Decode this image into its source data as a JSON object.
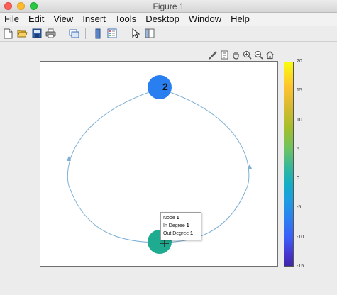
{
  "window": {
    "title": "Figure 1"
  },
  "menu": [
    "File",
    "Edit",
    "View",
    "Insert",
    "Tools",
    "Desktop",
    "Window",
    "Help"
  ],
  "toolbar": {
    "icons": [
      "new-file-icon",
      "open-folder-icon",
      "save-icon",
      "print-icon",
      "link-plot-icon",
      "insert-colorbar-icon",
      "insert-legend-icon",
      "edit-plot-icon",
      "property-inspector-icon"
    ]
  },
  "axes_toolbar": {
    "icons": [
      "brush-icon",
      "datatip-icon",
      "pan-icon",
      "zoom-in-icon",
      "zoom-out-icon",
      "home-icon"
    ]
  },
  "graph": {
    "nodes": [
      {
        "id": "1",
        "label": "",
        "color": "#1fab8f"
      },
      {
        "id": "2",
        "label": "2",
        "color": "#2a7ff0"
      }
    ],
    "edges": [
      {
        "from": "1",
        "to": "2"
      },
      {
        "from": "2",
        "to": "1"
      }
    ],
    "edge_color": "#7fb0d4"
  },
  "datatip": {
    "rows": [
      {
        "label": "Node",
        "value": "1"
      },
      {
        "label": "In Degree",
        "value": "1"
      },
      {
        "label": "Out Degree",
        "value": "1"
      }
    ]
  },
  "colorbar": {
    "ticks": [
      "20",
      "15",
      "10",
      "5",
      "0",
      "-5",
      "-10",
      "-15"
    ],
    "range": [
      -15,
      20
    ]
  }
}
